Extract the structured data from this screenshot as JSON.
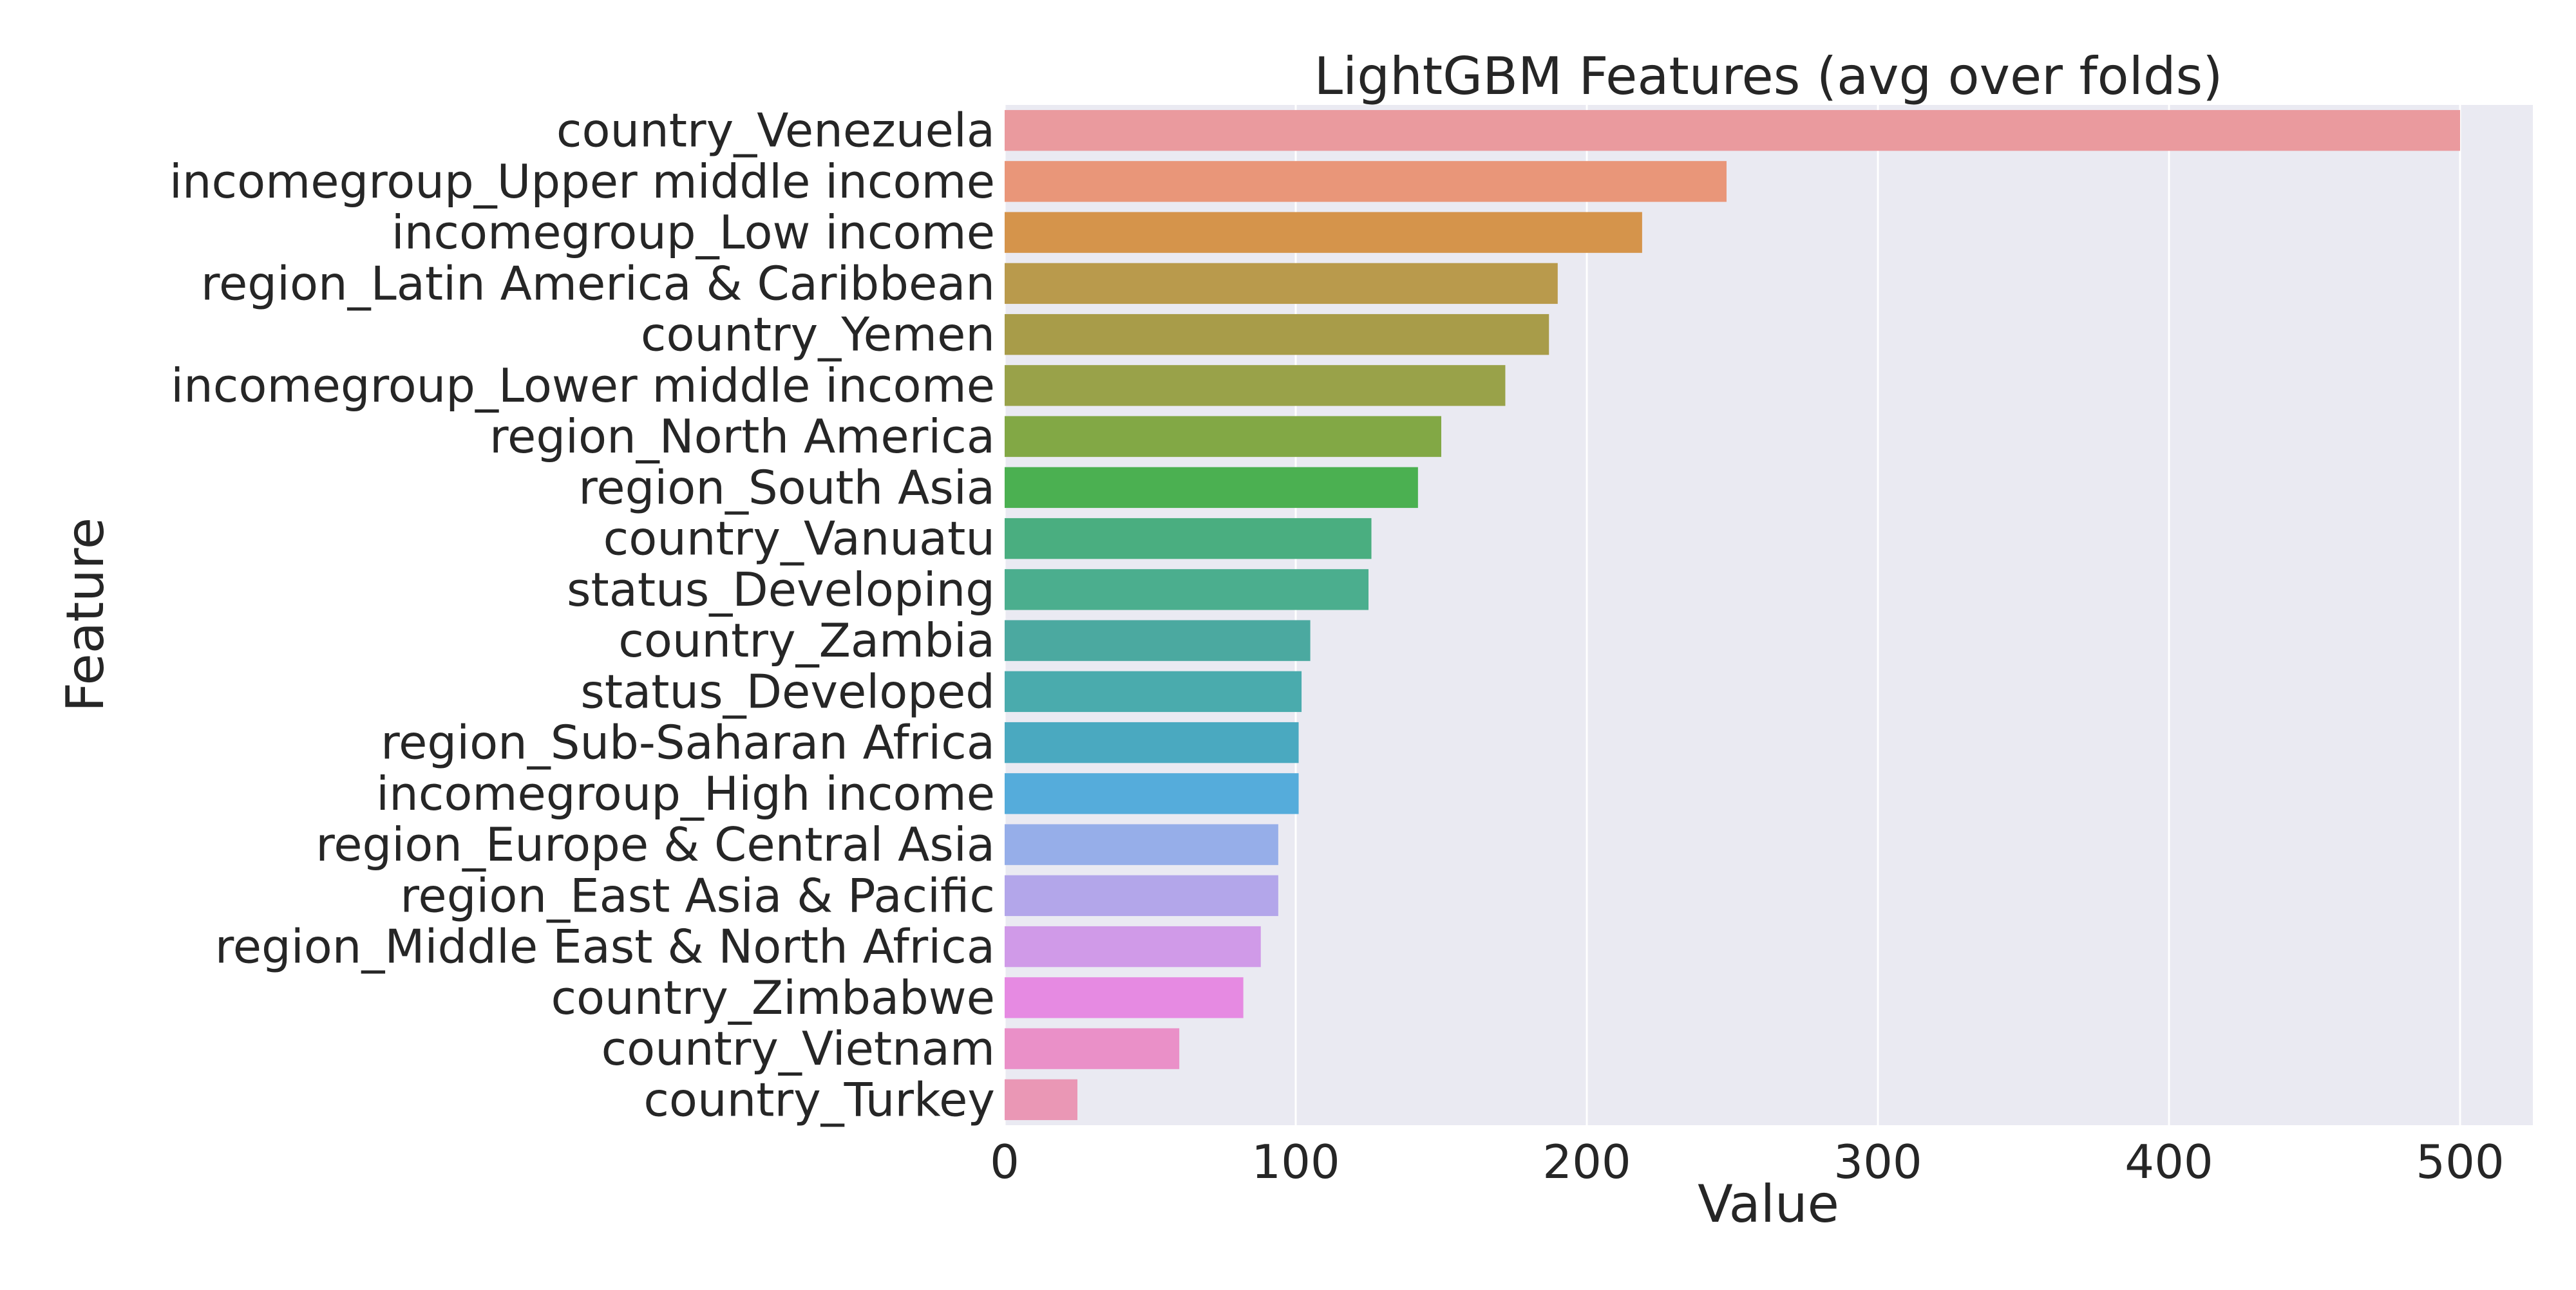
{
  "chart_data": {
    "type": "bar",
    "orientation": "horizontal",
    "title": "LightGBM Features (avg over folds)",
    "xlabel": "Value",
    "ylabel": "Feature",
    "xlim": [
      0,
      525
    ],
    "xticks": [
      0,
      100,
      200,
      300,
      400,
      500
    ],
    "grid": true,
    "plot_background": "#eaeaf2",
    "grid_color": "#ffffff",
    "categories": [
      "country_Venezuela",
      "incomegroup_Upper middle income",
      "incomegroup_Low income",
      "region_Latin America & Caribbean",
      "country_Yemen",
      "incomegroup_Lower middle income",
      "region_North America",
      "region_South Asia",
      "country_Vanuatu",
      "status_Developing",
      "country_Zambia",
      "status_Developed",
      "region_Sub-Saharan Africa",
      "incomegroup_High income",
      "region_Europe & Central Asia",
      "region_East Asia & Pacific",
      "region_Middle East & North Africa",
      "country_Zimbabwe",
      "country_Vietnam",
      "country_Turkey"
    ],
    "values": [
      500,
      248,
      219,
      190,
      187,
      172,
      150,
      142,
      126,
      125,
      105,
      102,
      101,
      101,
      94,
      94,
      88,
      82,
      60,
      25
    ],
    "colors": [
      "#ea9a9e",
      "#e99679",
      "#d5944b",
      "#b99a4c",
      "#a89c49",
      "#99a249",
      "#82a845",
      "#4bb051",
      "#4aae80",
      "#4bae8e",
      "#4ba9a0",
      "#4aabad",
      "#4aa9c0",
      "#55acdb",
      "#96aee9",
      "#b3a6ea",
      "#d09ae8",
      "#e68ae2",
      "#ea90c8",
      "#ea97b5"
    ]
  }
}
